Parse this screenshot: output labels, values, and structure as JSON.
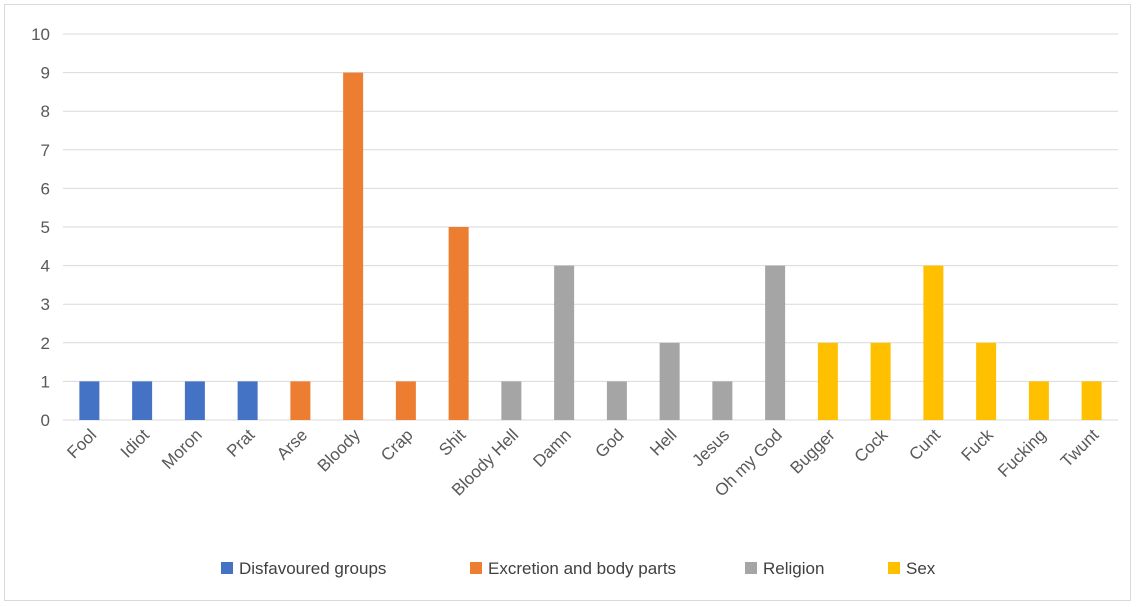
{
  "chart_data": {
    "type": "bar",
    "title": "",
    "xlabel": "",
    "ylabel": "",
    "ylim": [
      0,
      10
    ],
    "yticks": [
      0,
      1,
      2,
      3,
      4,
      5,
      6,
      7,
      8,
      9,
      10
    ],
    "grid": true,
    "legend_position": "bottom",
    "colors": {
      "Disfavoured groups": "#4472C4",
      "Excretion and body parts": "#ED7D31",
      "Religion": "#A5A5A5",
      "Sex": "#FFC000"
    },
    "legend": [
      "Disfavoured groups",
      "Excretion and body parts",
      "Religion",
      "Sex"
    ],
    "categories": [
      "Fool",
      "Idiot",
      "Moron",
      "Prat",
      "Arse",
      "Bloody",
      "Crap",
      "Shit",
      "Bloody Hell",
      "Damn",
      "God",
      "Hell",
      "Jesus",
      "Oh my God",
      "Bugger",
      "Cock",
      "Cunt",
      "Fuck",
      "Fucking",
      "Twunt"
    ],
    "values": [
      1,
      1,
      1,
      1,
      1,
      9,
      1,
      5,
      1,
      4,
      1,
      2,
      1,
      4,
      2,
      2,
      4,
      2,
      1,
      1
    ],
    "groups": [
      "Disfavoured groups",
      "Disfavoured groups",
      "Disfavoured groups",
      "Disfavoured groups",
      "Excretion and body parts",
      "Excretion and body parts",
      "Excretion and body parts",
      "Excretion and body parts",
      "Religion",
      "Religion",
      "Religion",
      "Religion",
      "Religion",
      "Religion",
      "Sex",
      "Sex",
      "Sex",
      "Sex",
      "Sex",
      "Sex"
    ]
  }
}
